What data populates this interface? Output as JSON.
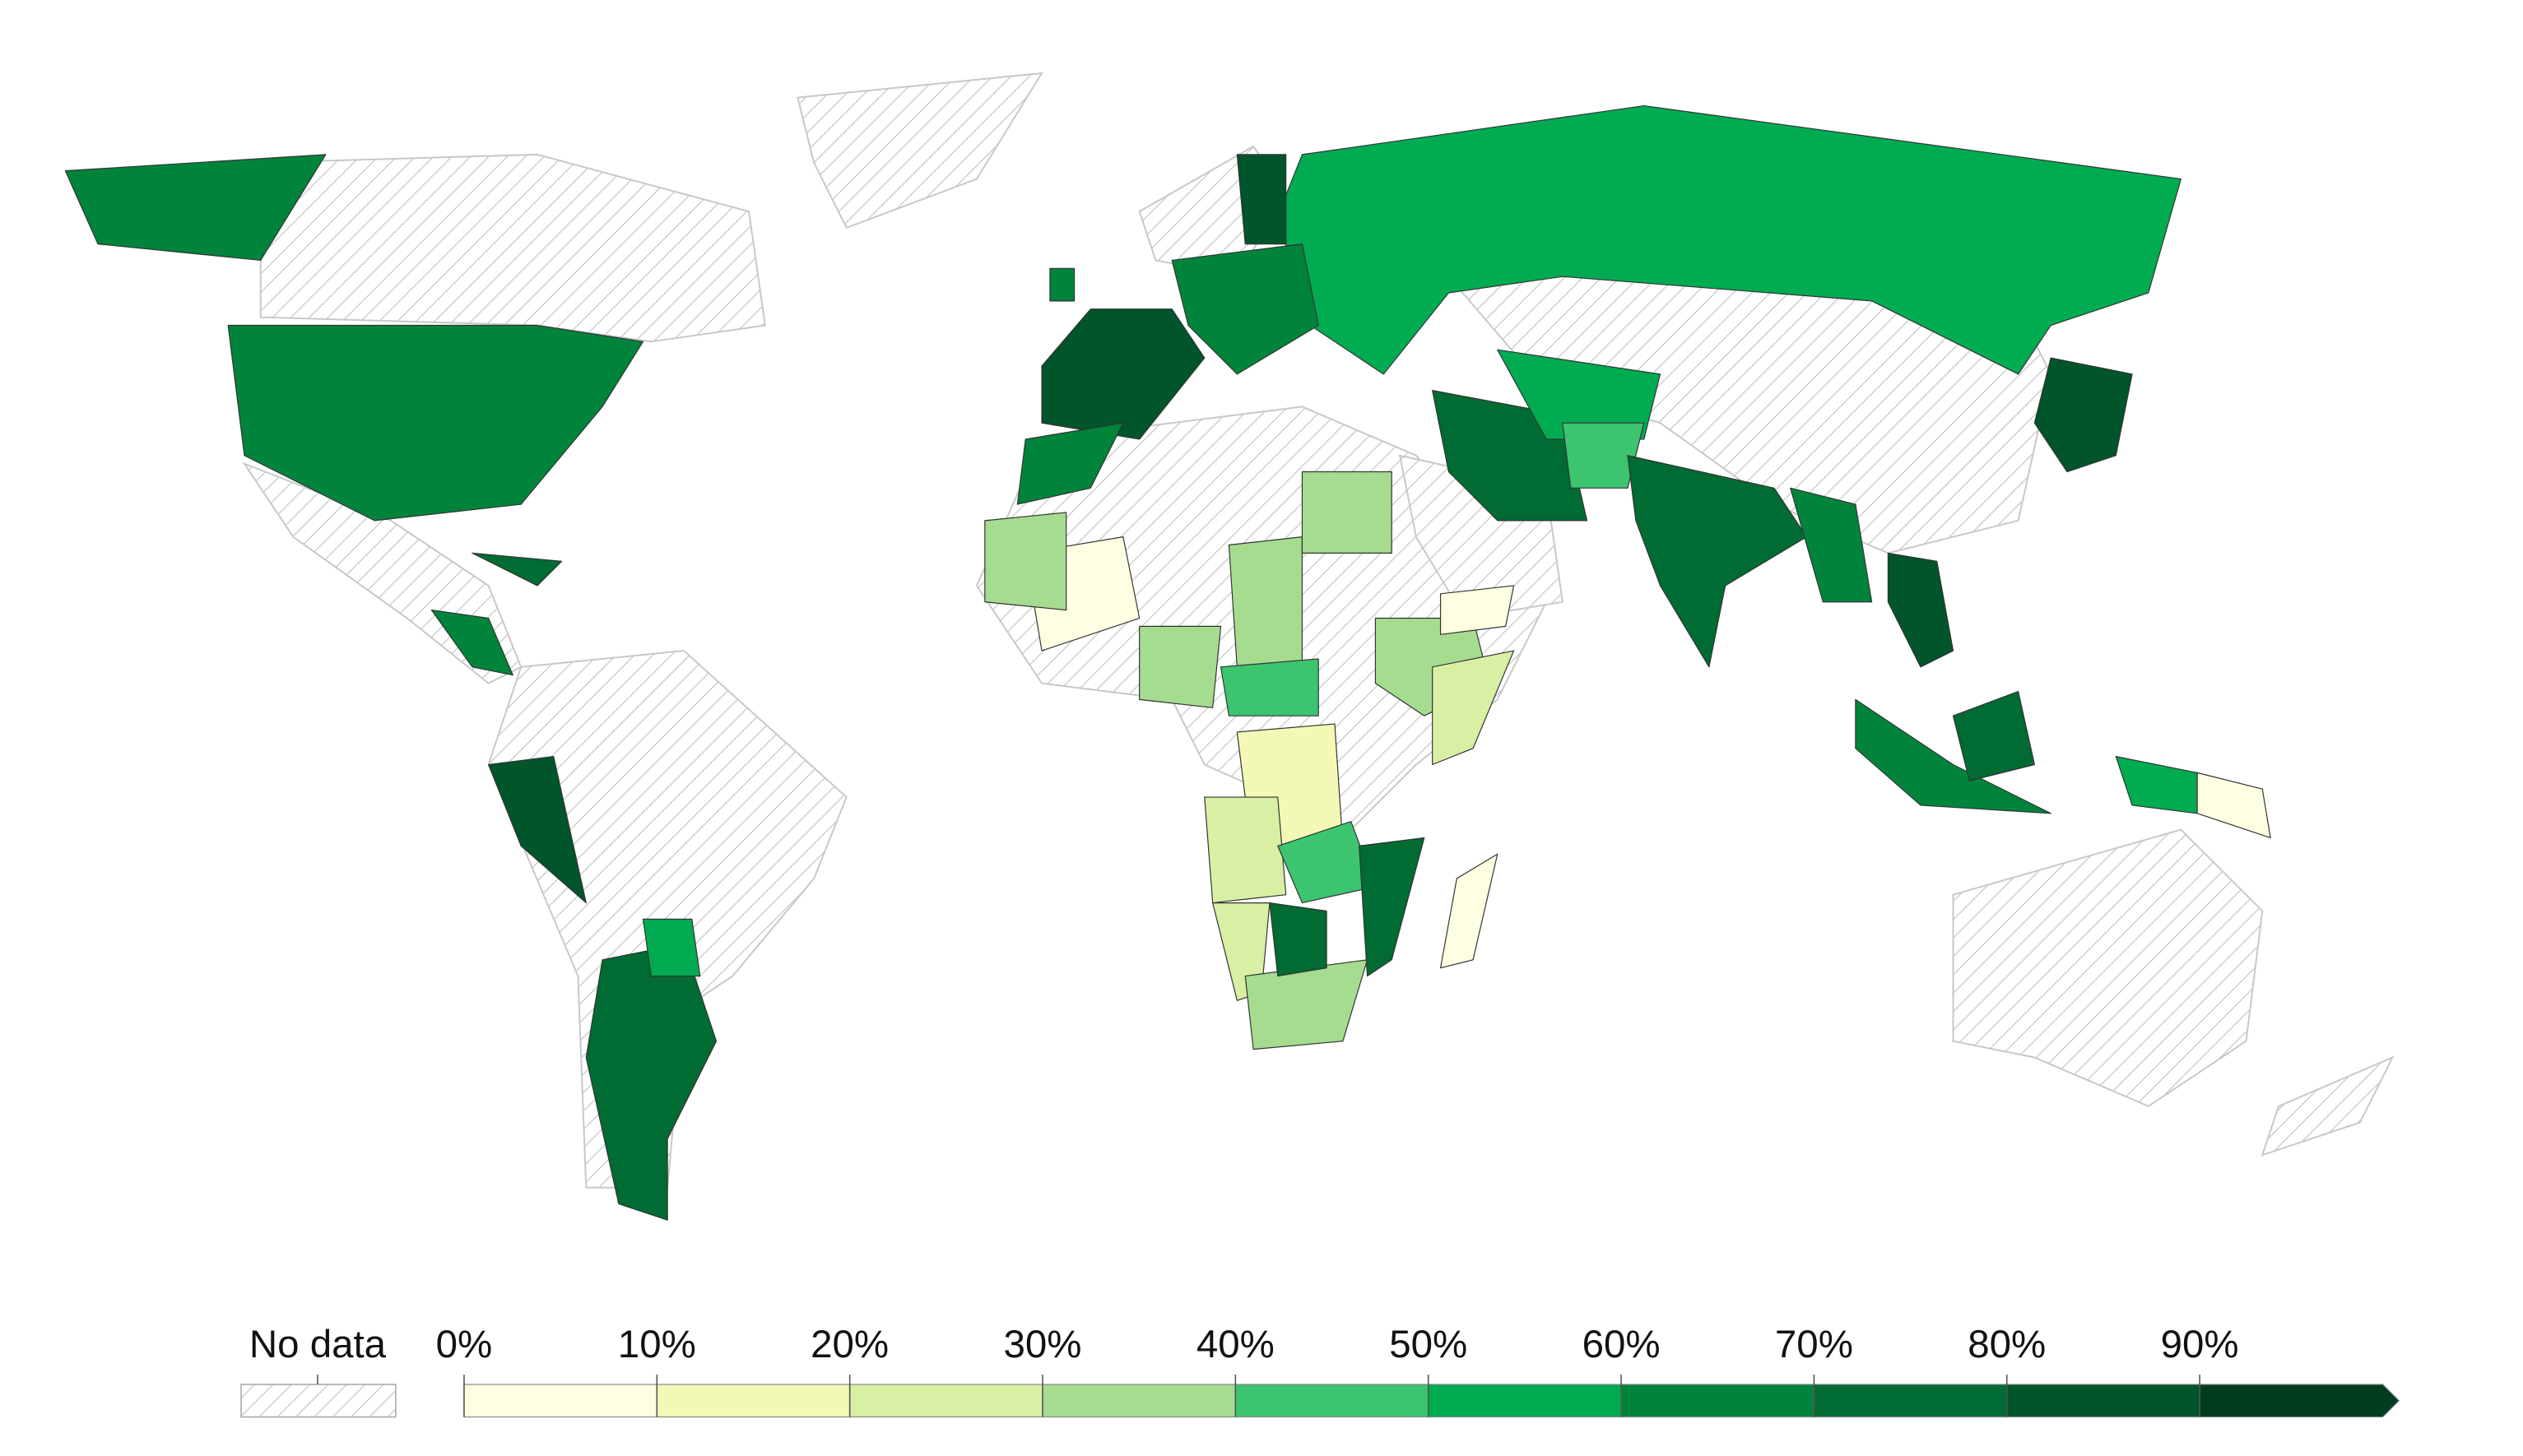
{
  "map": {
    "regions": [
      {
        "value": 65
      },
      {
        "value": 65
      },
      {
        "value": 55
      },
      {
        "value": 80
      },
      {
        "value": 65
      },
      {
        "value": 80
      },
      {
        "value": 65
      },
      {
        "value": 65
      },
      {
        "value": 70
      },
      {
        "value": 55
      },
      {
        "value": 45
      },
      {
        "value": 70
      },
      {
        "value": 65
      },
      {
        "value": 80
      },
      {
        "value": 65
      },
      {
        "value": 75
      },
      {
        "value": 80
      },
      {
        "value": 55
      },
      {
        "value": 5
      },
      {
        "value": 65
      },
      {
        "value": 70
      },
      {
        "value": 80
      },
      {
        "value": 70
      },
      {
        "value": 55
      },
      {
        "value": 5
      },
      {
        "value": 35
      },
      {
        "value": 35
      },
      {
        "value": 35
      },
      {
        "value": 45
      },
      {
        "value": 35
      },
      {
        "value": 25
      },
      {
        "value": 35
      },
      {
        "value": 15
      },
      {
        "value": 25
      },
      {
        "value": 20
      },
      {
        "value": 35
      },
      {
        "value": 45
      },
      {
        "value": 75
      },
      {
        "value": 70
      },
      {
        "value": 5
      },
      {
        "value": 5
      }
    ]
  },
  "legend": {
    "no_data_label": "No data",
    "ticks": [
      {
        "value": 0,
        "label": "0%"
      },
      {
        "value": 10,
        "label": "10%"
      },
      {
        "value": 20,
        "label": "20%"
      },
      {
        "value": 30,
        "label": "30%"
      },
      {
        "value": 40,
        "label": "40%"
      },
      {
        "value": 50,
        "label": "50%"
      },
      {
        "value": 60,
        "label": "60%"
      },
      {
        "value": 70,
        "label": "70%"
      },
      {
        "value": 80,
        "label": "80%"
      },
      {
        "value": 90,
        "label": "90%"
      }
    ],
    "colors": [
      "#fefee2",
      "#f4f8b6",
      "#d8efa4",
      "#a6dc8f",
      "#3cc46f",
      "#00ab52",
      "#00843b",
      "#006b32",
      "#00552a",
      "#003d1e"
    ]
  }
}
